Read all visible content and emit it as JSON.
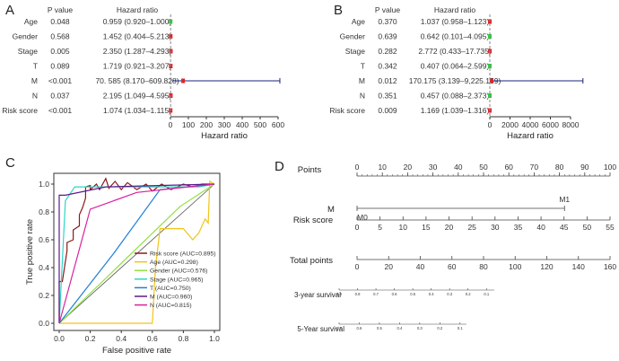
{
  "panel_letters": [
    "A",
    "B",
    "C",
    "D"
  ],
  "chart_data": [
    {
      "type": "forest",
      "panel": "A",
      "col_pvalue": "P value",
      "col_hr": "Hazard ratio",
      "rows": [
        {
          "label": "Age",
          "p": "0.048",
          "hr_text": "0.959 (0.920–1.000)",
          "hr": 0.959,
          "lo": 0.92,
          "hi": 1.0,
          "color": "#2ecc40"
        },
        {
          "label": "Gender",
          "p": "0.568",
          "hr_text": "1.452 (0.404–5.213)",
          "hr": 1.452,
          "lo": 0.404,
          "hi": 5.213,
          "color": "#e0242a"
        },
        {
          "label": "Stage",
          "p": "0.005",
          "hr_text": "2.350 (1.287–4.293)",
          "hr": 2.35,
          "lo": 1.287,
          "hi": 4.293,
          "color": "#e0242a"
        },
        {
          "label": "T",
          "p": "0.089",
          "hr_text": "1.719 (0.921–3.207)",
          "hr": 1.719,
          "lo": 0.921,
          "hi": 3.207,
          "color": "#e0242a"
        },
        {
          "label": "M",
          "p": "<0.001",
          "hr_text": "70. 585 (8.170–609.828)",
          "hr": 70.585,
          "lo": 8.17,
          "hi": 609.828,
          "color": "#e0242a"
        },
        {
          "label": "N",
          "p": "0.037",
          "hr_text": "2.195 (1.049–4.595)",
          "hr": 2.195,
          "lo": 1.049,
          "hi": 4.595,
          "color": "#e0242a"
        },
        {
          "label": "Risk score",
          "p": "<0.001",
          "hr_text": "1.074 (1.034–1.115)",
          "hr": 1.074,
          "lo": 1.034,
          "hi": 1.115,
          "color": "#e0242a"
        }
      ],
      "xlim": [
        0,
        600
      ],
      "ticks": [
        0,
        100,
        200,
        300,
        400,
        500,
        600
      ],
      "xlabel": "Hazard ratio",
      "ref": 1
    },
    {
      "type": "forest",
      "panel": "B",
      "col_pvalue": "P value",
      "col_hr": "Hazard ratio",
      "rows": [
        {
          "label": "Age",
          "p": "0.370",
          "hr_text": "1.037 (0.958–1.123)",
          "hr": 1.037,
          "lo": 0.958,
          "hi": 1.123,
          "color": "#e0242a"
        },
        {
          "label": "Gender",
          "p": "0.639",
          "hr_text": "0.642 (0.101–4.095)",
          "hr": 0.642,
          "lo": 0.101,
          "hi": 4.095,
          "color": "#2ecc40"
        },
        {
          "label": "Stage",
          "p": "0.282",
          "hr_text": "2.772 (0.433–17.735)",
          "hr": 2.772,
          "lo": 0.433,
          "hi": 17.735,
          "color": "#e0242a"
        },
        {
          "label": "T",
          "p": "0.342",
          "hr_text": "0.407 (0.064–2.599)",
          "hr": 0.407,
          "lo": 0.064,
          "hi": 2.599,
          "color": "#2ecc40"
        },
        {
          "label": "M",
          "p": "0.012",
          "hr_text": "170.175 (3.139–9,225.159)",
          "hr": 170.175,
          "lo": 3.139,
          "hi": 9225.159,
          "color": "#e0242a"
        },
        {
          "label": "N",
          "p": "0.351",
          "hr_text": "0.457 (0.088–2.373)",
          "hr": 0.457,
          "lo": 0.088,
          "hi": 2.373,
          "color": "#2ecc40"
        },
        {
          "label": "Risk score",
          "p": "0.009",
          "hr_text": "1.169 (1.039–1.316)",
          "hr": 1.169,
          "lo": 1.039,
          "hi": 1.316,
          "color": "#e0242a"
        }
      ],
      "xlim": [
        0,
        8000
      ],
      "ticks": [
        0,
        2000,
        4000,
        6000,
        8000
      ],
      "xlabel": "Hazard ratio",
      "ref": 1
    },
    {
      "type": "line",
      "panel": "C",
      "xlabel": "False positive rate",
      "ylabel": "True positive rate",
      "xlim": [
        0,
        1
      ],
      "ylim": [
        0,
        1
      ],
      "x_ticks": [
        "0.0",
        "0.2",
        "0.4",
        "0.6",
        "0.8",
        "1.0"
      ],
      "y_ticks": [
        "0.0",
        "0.2",
        "0.4",
        "0.6",
        "0.8",
        "1.0"
      ],
      "series": [
        {
          "name": "Risk score (AUC=0.895)",
          "color": "#8b1a1a",
          "x": [
            0,
            0,
            0.02,
            0.05,
            0.05,
            0.09,
            0.09,
            0.13,
            0.13,
            0.15,
            0.17,
            0.17,
            0.2,
            0.2,
            0.24,
            0.26,
            0.3,
            0.32,
            0.36,
            0.4,
            0.44,
            0.5,
            0.56,
            0.6,
            0.66,
            0.72,
            0.8,
            0.86,
            0.92,
            1
          ],
          "y": [
            0,
            0.3,
            0.3,
            0.52,
            0.58,
            0.6,
            0.67,
            0.7,
            0.78,
            0.83,
            0.9,
            0.98,
            0.99,
            0.96,
            1.0,
            0.96,
            1.04,
            0.97,
            1.02,
            0.96,
            1.01,
            0.96,
            1.0,
            0.95,
            1.0,
            0.96,
            1.0,
            0.98,
            1.0,
            1
          ]
        },
        {
          "name": "Age (AUC=0.298)",
          "color": "#f0c419",
          "x": [
            0,
            0.6,
            0.62,
            0.65,
            0.8,
            0.86,
            0.9,
            0.94,
            0.96,
            0.97,
            1
          ],
          "y": [
            0,
            0,
            0.4,
            0.68,
            0.68,
            0.6,
            0.65,
            0.75,
            0.72,
            1.02,
            1
          ]
        },
        {
          "name": "Gender (AUC=0.576)",
          "color": "#90e040",
          "x": [
            0,
            0.78,
            1
          ],
          "y": [
            0,
            0.84,
            1
          ]
        },
        {
          "name": "Stage (AUC=0.965)",
          "color": "#2ed6c8",
          "x": [
            0,
            0.04,
            0.1,
            0.9,
            1
          ],
          "y": [
            0,
            0.88,
            0.98,
            0.98,
            1
          ]
        },
        {
          "name": "T (AUC=0.750)",
          "color": "#1e7fd6",
          "x": [
            0,
            0.35,
            0.65,
            1
          ],
          "y": [
            0,
            0.5,
            0.96,
            1
          ]
        },
        {
          "name": "M (AUC=0.960)",
          "color": "#5c1a8a",
          "x": [
            0,
            0,
            0.04,
            0.3,
            1
          ],
          "y": [
            0,
            0.92,
            0.92,
            0.98,
            1
          ]
        },
        {
          "name": "N (AUC=0.815)",
          "color": "#d8229e",
          "x": [
            0,
            0.2,
            0.5,
            1
          ],
          "y": [
            0,
            0.82,
            0.94,
            1
          ]
        }
      ],
      "diagonal": true
    },
    {
      "type": "nomogram",
      "panel": "D",
      "rows": [
        {
          "label": "Points",
          "ticks": [
            "0",
            "10",
            "20",
            "30",
            "40",
            "50",
            "60",
            "70",
            "80",
            "90",
            "100"
          ],
          "range": [
            0,
            100
          ],
          "values": [
            0,
            10,
            20,
            30,
            40,
            50,
            60,
            70,
            80,
            90,
            100
          ]
        },
        {
          "label": "M",
          "categorical": true,
          "levels": [
            {
              "name": "M0",
              "points": 0
            },
            {
              "name": "M1",
              "points": 82
            }
          ]
        },
        {
          "label": "Risk score",
          "ticks": [
            "0",
            "5",
            "10",
            "15",
            "20",
            "25",
            "30",
            "35",
            "40",
            "45",
            "50",
            "55"
          ],
          "range": [
            0,
            55
          ],
          "values": [
            0,
            5,
            10,
            15,
            20,
            25,
            30,
            35,
            40,
            45,
            50,
            55
          ]
        },
        {
          "label": "Total points",
          "ticks": [
            "0",
            "20",
            "40",
            "60",
            "80",
            "100",
            "120",
            "140",
            "160"
          ],
          "range": [
            0,
            160
          ],
          "values": [
            0,
            20,
            40,
            60,
            80,
            100,
            120,
            140,
            160
          ]
        },
        {
          "label": "3-year survival",
          "ticks": [
            "0.9",
            "0.8",
            "0.7",
            "0.6",
            "0.5",
            "0.4",
            "0.3",
            "0.2",
            "0.1"
          ],
          "span_points": [
            0,
            45
          ]
        },
        {
          "label": "5-Year survival",
          "ticks": [
            "0.7",
            "0.6",
            "0.5",
            "0.4",
            "0.3",
            "0.2",
            "0.1"
          ],
          "span_points": [
            0,
            34
          ]
        }
      ]
    }
  ]
}
